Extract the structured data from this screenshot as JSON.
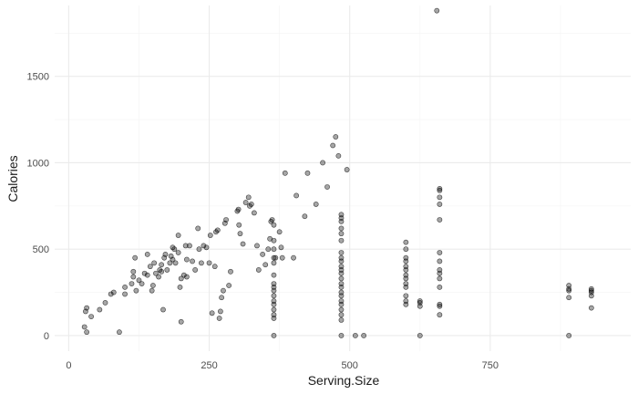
{
  "chart_data": {
    "type": "scatter",
    "title": "",
    "xlabel": "Serving.Size",
    "ylabel": "Calories",
    "xlim": [
      -25,
      1000
    ],
    "ylim": [
      -90,
      1910
    ],
    "x_ticks": [
      0,
      250,
      500,
      750
    ],
    "x_tick_labels": [
      "0",
      "250",
      "500",
      "750"
    ],
    "y_ticks": [
      0,
      500,
      1000,
      1500
    ],
    "y_tick_labels": [
      "0",
      "500",
      "1000",
      "1500"
    ],
    "grid": true,
    "legend": "none",
    "colors": {
      "point_fill": "#000000",
      "point_fill_opacity": 0.35,
      "point_stroke": "#000000",
      "grid_major": "#ebebeb",
      "grid_minor": "#f4f4f4"
    },
    "series": [
      {
        "points": [
          [
            28,
            50
          ],
          [
            32,
            20
          ],
          [
            30,
            140
          ],
          [
            32,
            160
          ],
          [
            40,
            110
          ],
          [
            55,
            150
          ],
          [
            65,
            190
          ],
          [
            75,
            240
          ],
          [
            80,
            250
          ],
          [
            90,
            20
          ],
          [
            100,
            240
          ],
          [
            100,
            280
          ],
          [
            112,
            300
          ],
          [
            115,
            340
          ],
          [
            115,
            370
          ],
          [
            118,
            450
          ],
          [
            120,
            260
          ],
          [
            125,
            320
          ],
          [
            130,
            300
          ],
          [
            135,
            360
          ],
          [
            140,
            350
          ],
          [
            140,
            470
          ],
          [
            145,
            400
          ],
          [
            148,
            260
          ],
          [
            150,
            290
          ],
          [
            152,
            420
          ],
          [
            155,
            360
          ],
          [
            160,
            340
          ],
          [
            162,
            380
          ],
          [
            165,
            370
          ],
          [
            165,
            410
          ],
          [
            168,
            150
          ],
          [
            170,
            450
          ],
          [
            172,
            470
          ],
          [
            175,
            380
          ],
          [
            180,
            420
          ],
          [
            182,
            460
          ],
          [
            185,
            440
          ],
          [
            185,
            510
          ],
          [
            188,
            500
          ],
          [
            190,
            420
          ],
          [
            195,
            480
          ],
          [
            195,
            580
          ],
          [
            198,
            280
          ],
          [
            200,
            80
          ],
          [
            200,
            330
          ],
          [
            205,
            350
          ],
          [
            208,
            520
          ],
          [
            210,
            340
          ],
          [
            210,
            440
          ],
          [
            215,
            520
          ],
          [
            220,
            430
          ],
          [
            225,
            380
          ],
          [
            230,
            620
          ],
          [
            232,
            500
          ],
          [
            236,
            420
          ],
          [
            240,
            520
          ],
          [
            245,
            510
          ],
          [
            250,
            420
          ],
          [
            252,
            580
          ],
          [
            255,
            130
          ],
          [
            260,
            400
          ],
          [
            262,
            600
          ],
          [
            265,
            610
          ],
          [
            268,
            100
          ],
          [
            270,
            140
          ],
          [
            272,
            220
          ],
          [
            275,
            260
          ],
          [
            278,
            650
          ],
          [
            280,
            670
          ],
          [
            285,
            290
          ],
          [
            288,
            370
          ],
          [
            300,
            720
          ],
          [
            302,
            730
          ],
          [
            303,
            640
          ],
          [
            305,
            590
          ],
          [
            310,
            530
          ],
          [
            315,
            770
          ],
          [
            320,
            800
          ],
          [
            322,
            750
          ],
          [
            325,
            760
          ],
          [
            330,
            710
          ],
          [
            335,
            520
          ],
          [
            338,
            380
          ],
          [
            345,
            470
          ],
          [
            350,
            410
          ],
          [
            355,
            500
          ],
          [
            358,
            560
          ],
          [
            360,
            660
          ],
          [
            362,
            670
          ],
          [
            365,
            640
          ],
          [
            368,
            450
          ],
          [
            375,
            600
          ],
          [
            378,
            510
          ],
          [
            380,
            450
          ],
          [
            385,
            940
          ],
          [
            400,
            450
          ],
          [
            405,
            810
          ],
          [
            420,
            690
          ],
          [
            425,
            940
          ],
          [
            440,
            760
          ],
          [
            452,
            1000
          ],
          [
            460,
            860
          ],
          [
            470,
            1100
          ],
          [
            475,
            1150
          ],
          [
            480,
            1040
          ],
          [
            495,
            960
          ],
          [
            510,
            0
          ],
          [
            365,
            0
          ],
          [
            365,
            100
          ],
          [
            365,
            120
          ],
          [
            365,
            150
          ],
          [
            365,
            180
          ],
          [
            365,
            200
          ],
          [
            365,
            230
          ],
          [
            365,
            260
          ],
          [
            365,
            280
          ],
          [
            365,
            300
          ],
          [
            365,
            350
          ],
          [
            365,
            420
          ],
          [
            365,
            450
          ],
          [
            365,
            500
          ],
          [
            365,
            550
          ],
          [
            485,
            0
          ],
          [
            485,
            90
          ],
          [
            485,
            120
          ],
          [
            485,
            150
          ],
          [
            485,
            180
          ],
          [
            485,
            200
          ],
          [
            485,
            230
          ],
          [
            485,
            250
          ],
          [
            485,
            280
          ],
          [
            485,
            300
          ],
          [
            485,
            330
          ],
          [
            485,
            360
          ],
          [
            485,
            380
          ],
          [
            485,
            400
          ],
          [
            485,
            430
          ],
          [
            485,
            450
          ],
          [
            485,
            480
          ],
          [
            485,
            550
          ],
          [
            485,
            590
          ],
          [
            485,
            620
          ],
          [
            485,
            660
          ],
          [
            485,
            680
          ],
          [
            485,
            700
          ],
          [
            525,
            0
          ],
          [
            600,
            180
          ],
          [
            600,
            200
          ],
          [
            600,
            230
          ],
          [
            600,
            280
          ],
          [
            600,
            300
          ],
          [
            600,
            330
          ],
          [
            600,
            350
          ],
          [
            600,
            380
          ],
          [
            600,
            400
          ],
          [
            600,
            430
          ],
          [
            600,
            450
          ],
          [
            600,
            500
          ],
          [
            600,
            540
          ],
          [
            625,
            0
          ],
          [
            625,
            170
          ],
          [
            625,
            190
          ],
          [
            625,
            200
          ],
          [
            660,
            120
          ],
          [
            660,
            170
          ],
          [
            660,
            180
          ],
          [
            660,
            280
          ],
          [
            660,
            330
          ],
          [
            660,
            360
          ],
          [
            660,
            380
          ],
          [
            660,
            430
          ],
          [
            660,
            480
          ],
          [
            660,
            670
          ],
          [
            660,
            760
          ],
          [
            660,
            800
          ],
          [
            660,
            840
          ],
          [
            660,
            850
          ],
          [
            655,
            1880
          ],
          [
            890,
            0
          ],
          [
            890,
            220
          ],
          [
            890,
            260
          ],
          [
            890,
            270
          ],
          [
            890,
            290
          ],
          [
            930,
            160
          ],
          [
            930,
            230
          ],
          [
            930,
            250
          ],
          [
            930,
            260
          ],
          [
            930,
            270
          ]
        ]
      }
    ]
  }
}
